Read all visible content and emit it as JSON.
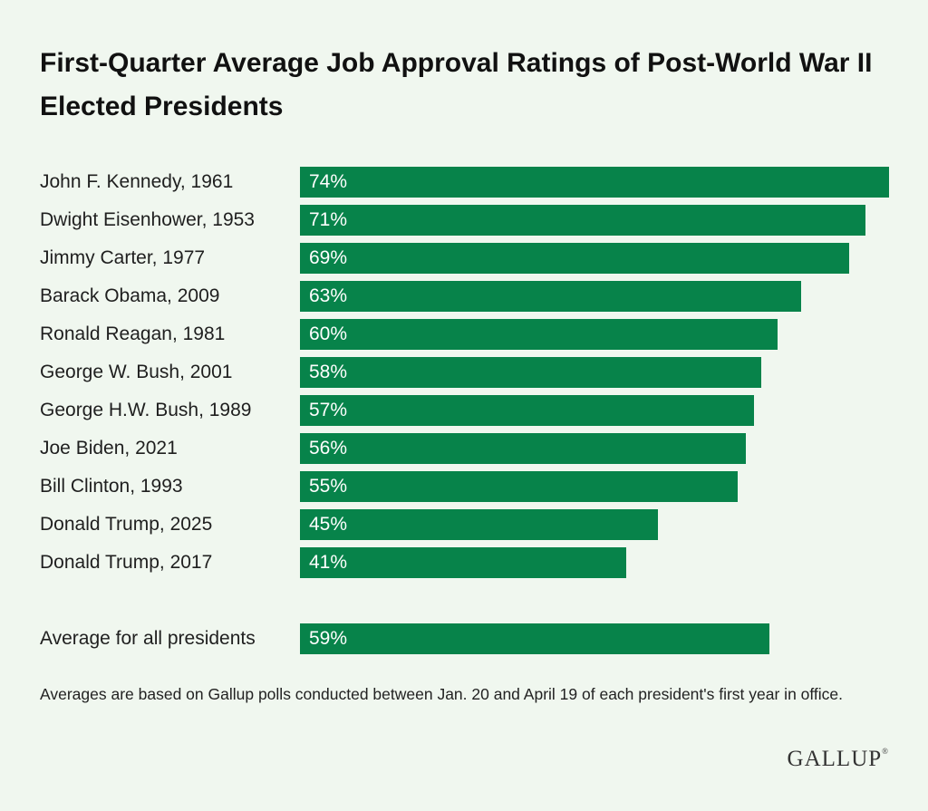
{
  "chart_data": {
    "type": "bar",
    "orientation": "horizontal",
    "title": "First-Quarter Average Job Approval Ratings of Post-World War II Elected Presidents",
    "categories": [
      "John F. Kennedy, 1961",
      "Dwight Eisenhower, 1953",
      "Jimmy Carter, 1977",
      "Barack Obama, 2009",
      "Ronald Reagan, 1981",
      "George W. Bush, 2001",
      "George H.W. Bush, 1989",
      "Joe Biden, 2021",
      "Bill Clinton, 1993",
      "Donald Trump, 2025",
      "Donald Trump, 2017"
    ],
    "values": [
      74,
      71,
      69,
      63,
      60,
      58,
      57,
      56,
      55,
      45,
      41
    ],
    "value_labels": [
      "74%",
      "71%",
      "69%",
      "63%",
      "60%",
      "58%",
      "57%",
      "56%",
      "55%",
      "45%",
      "41%"
    ],
    "average": {
      "label": "Average for all presidents",
      "value": 59,
      "value_label": "59%"
    },
    "xlim": [
      0,
      74
    ],
    "bar_color": "#07834a"
  },
  "footnote": "Averages are based on Gallup polls conducted between Jan. 20 and April 19 of each president's first year in office.",
  "logo": {
    "text": "GALLUP",
    "mark": "®"
  },
  "colors": {
    "background": "#f0f7ef",
    "bar": "#07834a",
    "bar_text": "#ffffff"
  }
}
